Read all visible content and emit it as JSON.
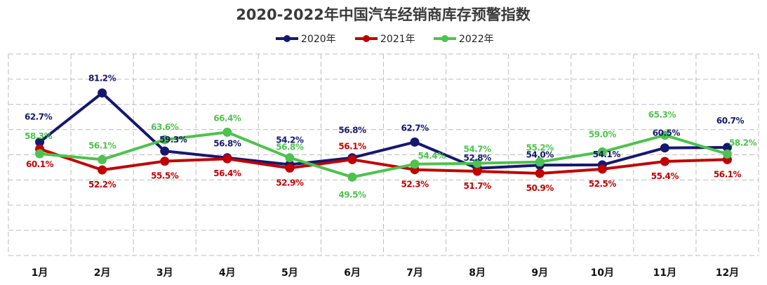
{
  "chart_data": {
    "type": "line",
    "title": "2020-2022年中国汽车经销商库存预警指数",
    "categories": [
      "1月",
      "2月",
      "3月",
      "4月",
      "5月",
      "6月",
      "7月",
      "8月",
      "9月",
      "10月",
      "11月",
      "12月"
    ],
    "series": [
      {
        "name": "2020年",
        "color": "#16186e",
        "values": [
          62.7,
          81.2,
          59.3,
          56.8,
          54.2,
          56.8,
          62.7,
          52.8,
          54.0,
          54.1,
          60.5,
          60.7
        ],
        "labels": [
          "62.7%",
          "81.2%",
          "59.3%",
          "56.8%",
          "54.2%",
          "56.8%",
          "62.7%",
          "52.8%",
          "54.0%",
          "54.1%",
          "60.5%",
          "60.7%"
        ]
      },
      {
        "name": "2021年",
        "color": "#c00000",
        "values": [
          60.1,
          52.2,
          55.5,
          56.4,
          52.9,
          56.1,
          52.3,
          51.7,
          50.9,
          52.5,
          55.4,
          56.1
        ],
        "labels": [
          "60.1%",
          "52.2%",
          "55.5%",
          "56.4%",
          "52.9%",
          "56.1%",
          "52.3%",
          "51.7%",
          "50.9%",
          "52.5%",
          "55.4%",
          "56.1%"
        ]
      },
      {
        "name": "2022年",
        "color": "#4ec24e",
        "values": [
          58.3,
          56.1,
          63.6,
          66.4,
          56.8,
          49.5,
          54.4,
          54.7,
          55.2,
          59.0,
          65.3,
          58.2
        ],
        "labels": [
          "58.3%",
          "56.1%",
          "63.6%",
          "66.4%",
          "56.8%",
          "49.5%",
          "54.4%",
          "54.7%",
          "55.2%",
          "59.0%",
          "65.3%",
          "58.2%"
        ]
      }
    ],
    "ylim": [
      0,
      100
    ],
    "grid": true,
    "legend_position": "top-center"
  }
}
